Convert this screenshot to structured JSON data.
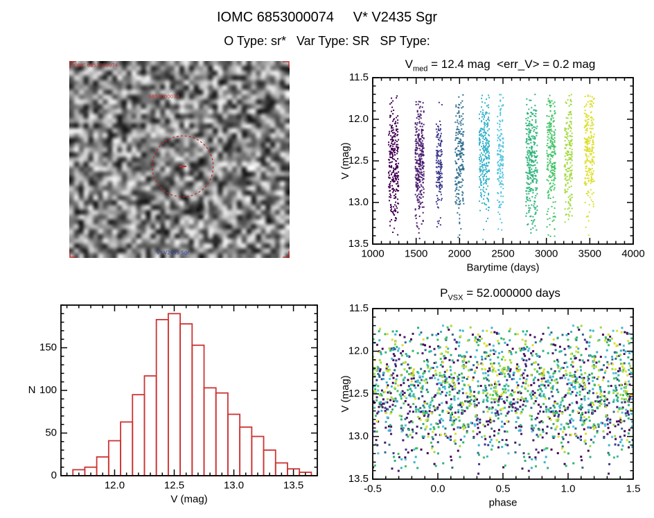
{
  "page": {
    "title": "IOMC 6853000074     V* V2435 Sgr",
    "subtitle": "O Type: sr*   Var Type: SR   SP Type:"
  },
  "image_panel": {
    "top_label": "IOMC 6853000074",
    "center_label": "6853000074",
    "bottom_label": "V* V2435 Sgr",
    "marker_color": "#cc2222",
    "label_color_top": "#cc3333",
    "label_color_bottom": "#3344bb"
  },
  "chart_data": [
    {
      "id": "lightcurve",
      "type": "scatter",
      "title": {
        "prefix": "V",
        "sub": "med",
        "rest": " = 12.4 mag  <err_V> = 0.2 mag"
      },
      "xlabel": "Barytime (days)",
      "ylabel": "V (mag)",
      "xlim": [
        1000,
        4000
      ],
      "ylim": [
        11.5,
        13.5
      ],
      "y_inverted": true,
      "xticks": [
        1000,
        1500,
        2000,
        2500,
        3000,
        3500,
        4000
      ],
      "xtick_labels": [
        "1000",
        "1500",
        "2000",
        "2500",
        "3000",
        "3500",
        "4000"
      ],
      "yticks": [
        11.5,
        12.0,
        12.5,
        13.0,
        13.5
      ],
      "ytick_labels": [
        "11.5",
        "12.0",
        "12.5",
        "13.0",
        "13.5"
      ],
      "x_minor_step": 100,
      "y_minor_step": 0.1,
      "point_size": 2,
      "y_clip": [
        11.7,
        13.45
      ],
      "clusters": [
        {
          "x": 1240,
          "x_spread": 55,
          "y_mean": 12.55,
          "y_sigma": 0.38,
          "n": 280,
          "color": "#440154"
        },
        {
          "x": 1540,
          "x_spread": 50,
          "y_mean": 12.5,
          "y_sigma": 0.4,
          "n": 280,
          "color": "#46186c"
        },
        {
          "x": 1765,
          "x_spread": 35,
          "y_mean": 12.6,
          "y_sigma": 0.36,
          "n": 150,
          "color": "#3d3a8c"
        },
        {
          "x": 2000,
          "x_spread": 50,
          "y_mean": 12.45,
          "y_sigma": 0.38,
          "n": 210,
          "color": "#2e6e8e"
        },
        {
          "x": 2285,
          "x_spread": 60,
          "y_mean": 12.35,
          "y_sigma": 0.4,
          "n": 280,
          "color": "#38b5cc"
        },
        {
          "x": 2470,
          "x_spread": 35,
          "y_mean": 12.5,
          "y_sigma": 0.38,
          "n": 150,
          "color": "#55c4dc"
        },
        {
          "x": 2830,
          "x_spread": 65,
          "y_mean": 12.5,
          "y_sigma": 0.4,
          "n": 300,
          "color": "#2cb37a"
        },
        {
          "x": 3055,
          "x_spread": 50,
          "y_mean": 12.45,
          "y_sigma": 0.38,
          "n": 230,
          "color": "#3fc263"
        },
        {
          "x": 3255,
          "x_spread": 45,
          "y_mean": 12.35,
          "y_sigma": 0.42,
          "n": 180,
          "color": "#a0d93a"
        },
        {
          "x": 3495,
          "x_spread": 55,
          "y_mean": 12.3,
          "y_sigma": 0.42,
          "n": 230,
          "color": "#dcdf2e"
        }
      ]
    },
    {
      "id": "histogram",
      "type": "bar",
      "xlabel": "V (mag)",
      "ylabel": "N",
      "ylabel_rotate": false,
      "xlim": [
        11.55,
        13.7
      ],
      "ylim": [
        0,
        200
      ],
      "xticks": [
        12.0,
        12.5,
        13.0,
        13.5
      ],
      "xtick_labels": [
        "12.0",
        "12.5",
        "13.0",
        "13.5"
      ],
      "yticks": [
        0,
        50,
        100,
        150
      ],
      "ytick_labels": [
        "0",
        "50",
        "100",
        "150"
      ],
      "x_minor_step": 0.1,
      "y_minor_step": 10,
      "bin_start": 11.65,
      "bin_width": 0.1,
      "values": [
        7,
        10,
        22,
        41,
        63,
        95,
        117,
        183,
        190,
        178,
        153,
        103,
        97,
        72,
        57,
        46,
        30,
        15,
        8,
        4
      ],
      "color": "#cd3333"
    },
    {
      "id": "phase",
      "type": "scatter",
      "title": {
        "prefix": "P",
        "sub": "VSX",
        "rest": " = 52.000000 days"
      },
      "xlabel": "phase",
      "ylabel": "V (mag)",
      "xlim": [
        -0.5,
        1.5
      ],
      "ylim": [
        11.5,
        13.5
      ],
      "y_inverted": true,
      "xticks": [
        -0.5,
        0.0,
        0.5,
        1.0,
        1.5
      ],
      "xtick_labels": [
        "-0.5",
        "0.0",
        "0.5",
        "1.0",
        "1.5"
      ],
      "yticks": [
        11.5,
        12.0,
        12.5,
        13.0,
        13.5
      ],
      "ytick_labels": [
        "11.5",
        "12.0",
        "12.5",
        "13.0",
        "13.5"
      ],
      "x_minor_step": 0.1,
      "y_minor_step": 0.1,
      "point_size": 3,
      "y_clip": [
        11.7,
        13.45
      ],
      "series": [
        {
          "n": 115,
          "y_mean": 12.55,
          "y_sigma": 0.4,
          "color": "#440154"
        },
        {
          "n": 115,
          "y_mean": 12.5,
          "y_sigma": 0.42,
          "color": "#46186c"
        },
        {
          "n": 70,
          "y_mean": 12.6,
          "y_sigma": 0.38,
          "color": "#3d3a8c"
        },
        {
          "n": 90,
          "y_mean": 12.45,
          "y_sigma": 0.4,
          "color": "#2e6e8e"
        },
        {
          "n": 115,
          "y_mean": 12.35,
          "y_sigma": 0.42,
          "color": "#38b5cc"
        },
        {
          "n": 70,
          "y_mean": 12.5,
          "y_sigma": 0.4,
          "color": "#55c4dc"
        },
        {
          "n": 120,
          "y_mean": 12.5,
          "y_sigma": 0.42,
          "color": "#2cb37a"
        },
        {
          "n": 95,
          "y_mean": 12.45,
          "y_sigma": 0.4,
          "color": "#3fc263"
        },
        {
          "n": 75,
          "y_mean": 12.35,
          "y_sigma": 0.44,
          "color": "#a0d93a"
        },
        {
          "n": 95,
          "y_mean": 12.3,
          "y_sigma": 0.44,
          "color": "#dcdf2e"
        }
      ]
    }
  ]
}
